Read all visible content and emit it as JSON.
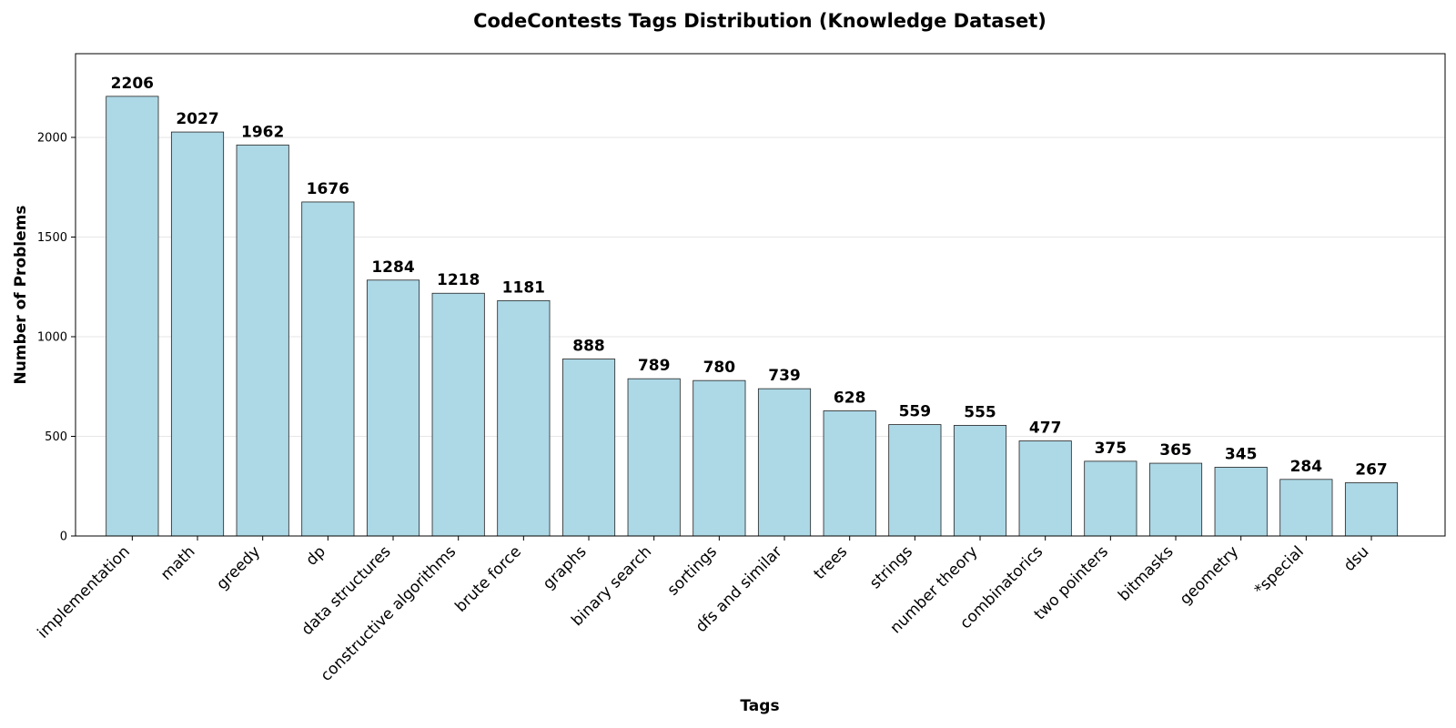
{
  "chart_data": {
    "type": "bar",
    "title": "CodeContests Tags Distribution (Knowledge Dataset)",
    "xlabel": "Tags",
    "ylabel": "Number of Problems",
    "categories": [
      "implementation",
      "math",
      "greedy",
      "dp",
      "data structures",
      "constructive algorithms",
      "brute force",
      "graphs",
      "binary search",
      "sortings",
      "dfs and similar",
      "trees",
      "strings",
      "number theory",
      "combinatorics",
      "two pointers",
      "bitmasks",
      "geometry",
      "*special",
      "dsu"
    ],
    "values": [
      2206,
      2027,
      1962,
      1676,
      1284,
      1218,
      1181,
      888,
      789,
      780,
      739,
      628,
      559,
      555,
      477,
      375,
      365,
      345,
      284,
      267
    ],
    "ylim": [
      0,
      2420
    ],
    "yticks": [
      0,
      500,
      1000,
      1500,
      2000
    ],
    "grid": "horizontal",
    "bar_color": "#add8e6",
    "edge_color": "#222222"
  }
}
